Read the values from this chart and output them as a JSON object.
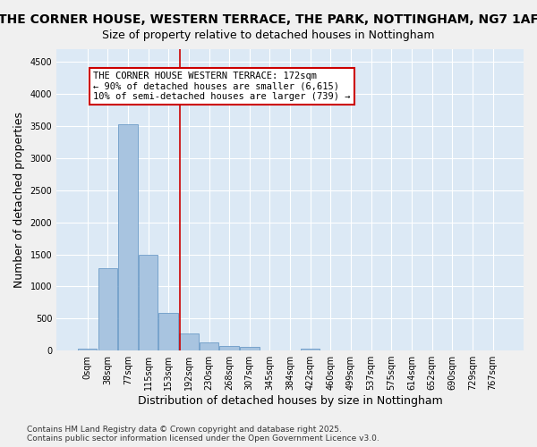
{
  "title": "THE CORNER HOUSE, WESTERN TERRACE, THE PARK, NOTTINGHAM, NG7 1AF",
  "subtitle": "Size of property relative to detached houses in Nottingham",
  "xlabel": "Distribution of detached houses by size in Nottingham",
  "ylabel": "Number of detached properties",
  "bar_values": [
    30,
    1280,
    3530,
    1490,
    590,
    260,
    130,
    75,
    50,
    0,
    0,
    30,
    0,
    0,
    0,
    0,
    0,
    0,
    0,
    0,
    0
  ],
  "bar_labels": [
    "0sqm",
    "38sqm",
    "77sqm",
    "115sqm",
    "153sqm",
    "192sqm",
    "230sqm",
    "268sqm",
    "307sqm",
    "345sqm",
    "384sqm",
    "422sqm",
    "460sqm",
    "499sqm",
    "537sqm",
    "575sqm",
    "614sqm",
    "652sqm",
    "690sqm",
    "729sqm",
    "767sqm"
  ],
  "ylim": [
    0,
    4700
  ],
  "yticks": [
    0,
    500,
    1000,
    1500,
    2000,
    2500,
    3000,
    3500,
    4000,
    4500
  ],
  "bar_color": "#a8c4e0",
  "bar_edge_color": "#5a8fc0",
  "vline_x": 4.55,
  "vline_color": "#cc0000",
  "annotation_text": "THE CORNER HOUSE WESTERN TERRACE: 172sqm\n← 90% of detached houses are smaller (6,615)\n10% of semi-detached houses are larger (739) →",
  "annotation_box_color": "#cc0000",
  "background_color": "#dce9f5",
  "grid_color": "#ffffff",
  "footer_text": "Contains HM Land Registry data © Crown copyright and database right 2025.\nContains public sector information licensed under the Open Government Licence v3.0.",
  "title_fontsize": 10,
  "subtitle_fontsize": 9,
  "xlabel_fontsize": 9,
  "ylabel_fontsize": 9,
  "tick_fontsize": 7,
  "annotation_fontsize": 7.5,
  "footer_fontsize": 6.5
}
